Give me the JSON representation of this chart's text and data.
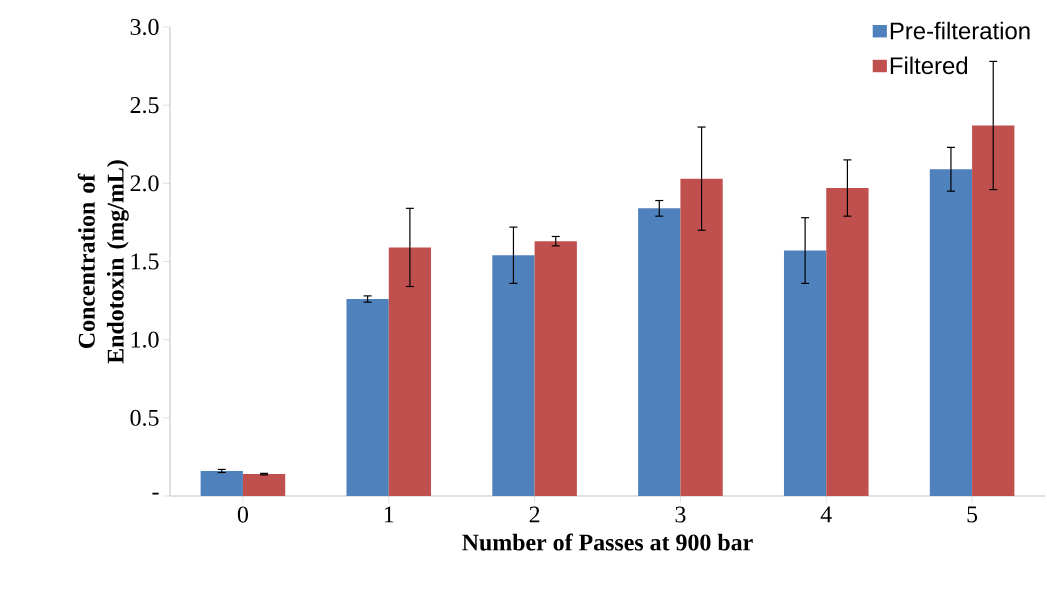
{
  "chart_data": {
    "type": "bar",
    "xlabel": "Number of Passes at 900 bar",
    "ylabel": "Concentration of Endotoxin (mg/mL)",
    "categories": [
      "0",
      "1",
      "2",
      "3",
      "4",
      "5"
    ],
    "series": [
      {
        "name": "Pre-filteration",
        "color": "#4f81bd",
        "values": [
          0.16,
          1.26,
          1.54,
          1.84,
          1.57,
          2.09
        ],
        "errors": [
          0.01,
          0.02,
          0.18,
          0.05,
          0.21,
          0.14
        ]
      },
      {
        "name": "Filtered",
        "color": "#c0504d",
        "values": [
          0.14,
          1.59,
          1.63,
          2.03,
          1.97,
          2.37
        ],
        "errors": [
          0.005,
          0.25,
          0.03,
          0.33,
          0.18,
          0.41
        ]
      }
    ],
    "ylim": [
      0,
      3.0
    ],
    "yticks": [
      {
        "value": 0,
        "label": "-"
      },
      {
        "value": 0.5,
        "label": "0.5"
      },
      {
        "value": 1.0,
        "label": "1.0"
      },
      {
        "value": 1.5,
        "label": "1.5"
      },
      {
        "value": 2.0,
        "label": "2.0"
      },
      {
        "value": 2.5,
        "label": "2.5"
      },
      {
        "value": 3.0,
        "label": "3.0"
      }
    ],
    "legend": "top right"
  }
}
